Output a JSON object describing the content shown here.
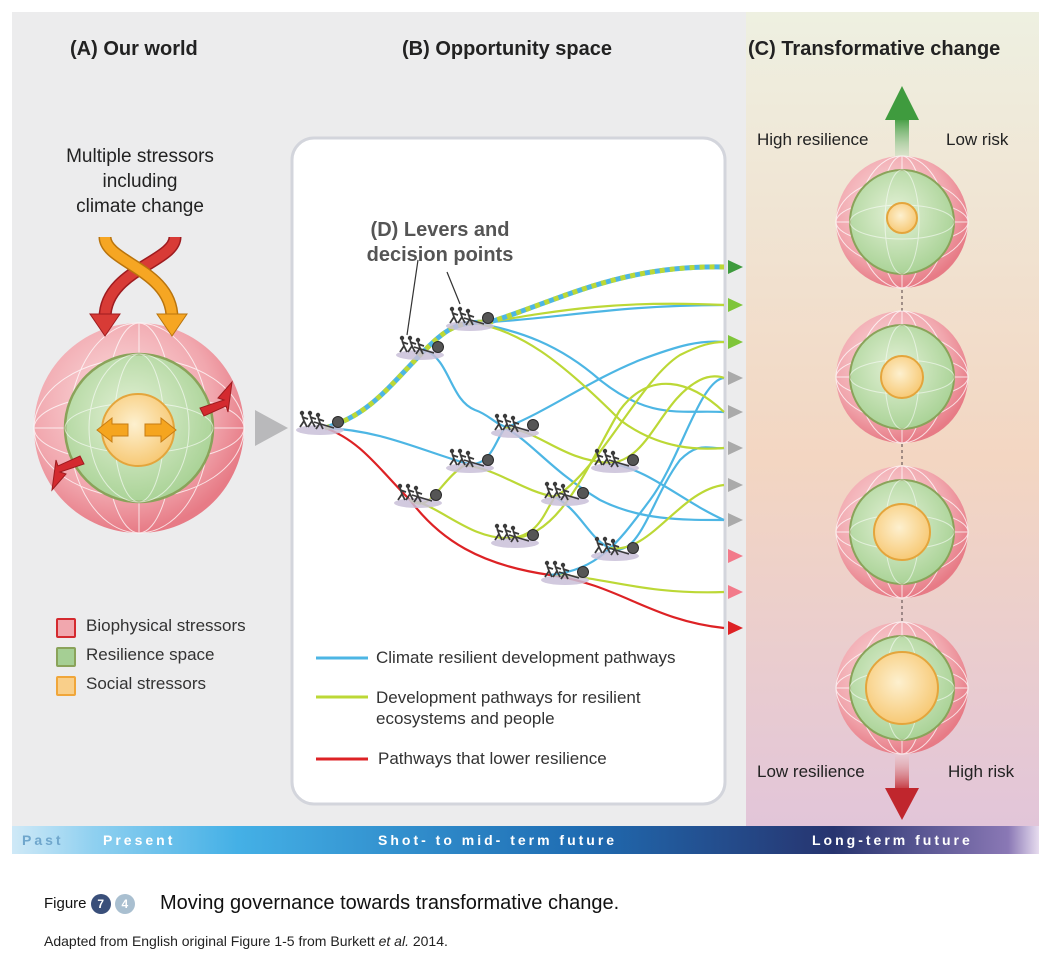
{
  "panels": {
    "a_title": "(A) Our world",
    "b_title": "(B) Opportunity space",
    "c_title": "(C) Transformative change"
  },
  "stressors_label": [
    "Multiple stressors",
    "including",
    "climate change"
  ],
  "levers_label": [
    "(D) Levers and",
    "decision points"
  ],
  "panel_c": {
    "top_left": "High resilience",
    "top_right": "Low risk",
    "bottom_left": "Low resilience",
    "bottom_right": "High risk"
  },
  "left_legend": [
    {
      "label": "Biophysical stressors",
      "color": "#e8848c"
    },
    {
      "label": "Resilience space",
      "color": "#a5cf94"
    },
    {
      "label": "Social stressors",
      "color": "#f9cf8a"
    }
  ],
  "pathway_legend": [
    {
      "label": "Climate resilient development pathways",
      "color": "#4db6e4"
    },
    {
      "label": "Development pathways for resilient",
      "label2": "ecosystems and people",
      "color": "#bcd836"
    },
    {
      "label": "Pathways that lower resilience",
      "color": "#dd2225"
    }
  ],
  "timeline": {
    "past": "Past",
    "present": "Present",
    "short_mid": "Shot- to mid- term future",
    "long": "Long-term future"
  },
  "caption": {
    "figure_word": "Figure",
    "badge1": "7",
    "badge2": "4",
    "title": "Moving governance towards transformative change.",
    "source_pre": "Adapted from English original Figure 1-5 from Burkett ",
    "source_italic": "et al.",
    "source_post": " 2014."
  },
  "colors": {
    "climate_resilient": "#4db6e4",
    "resilient_ecosystems": "#bcd836",
    "lower_resilience": "#dd2225",
    "badge_dark": "#3a4f7a",
    "badge_light": "#a9bfd0"
  }
}
